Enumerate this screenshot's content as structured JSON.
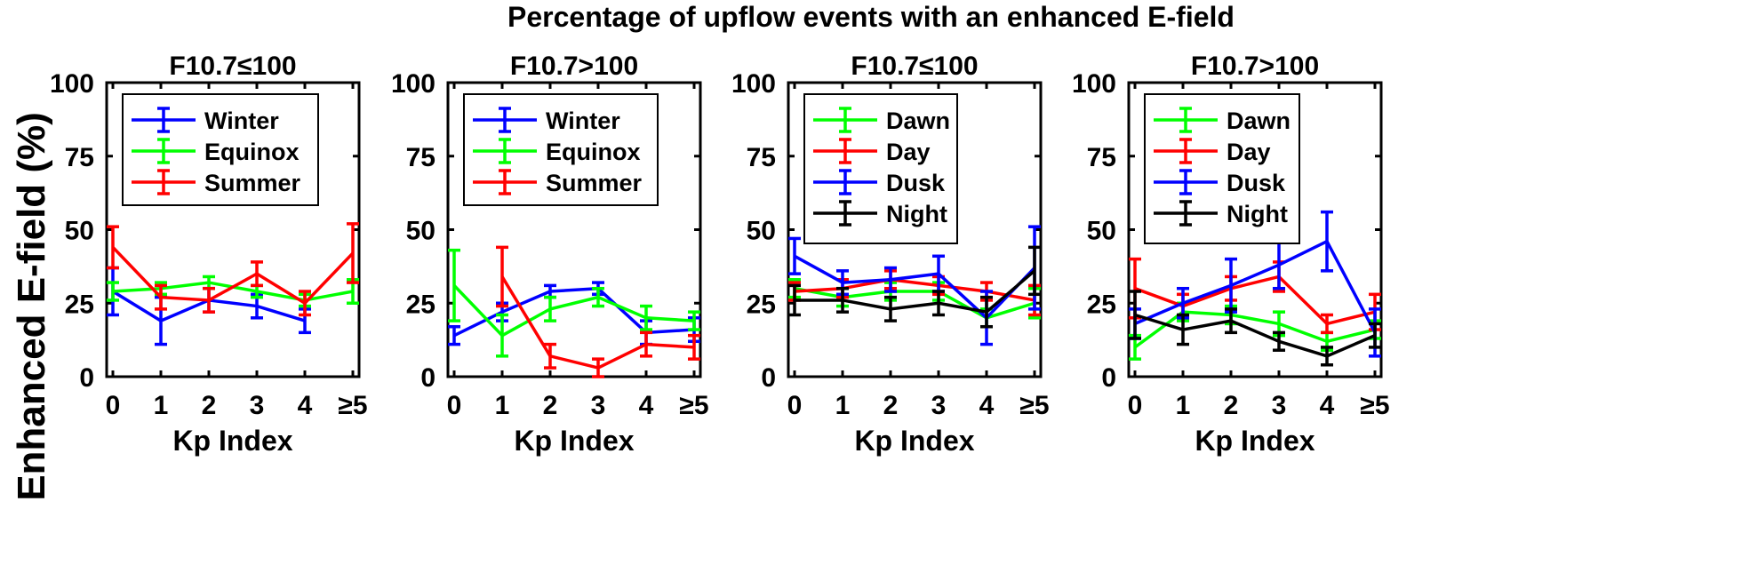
{
  "figure": {
    "title": "Percentage of upflow events with an enhanced E-field",
    "ylabel": "Enhanced E-field (%)"
  },
  "chart_data": [
    {
      "type": "line",
      "title": "F10.7≤100",
      "xlabel": "Kp Index",
      "ylabel": "Enhanced E-field (%)",
      "categories": [
        "0",
        "1",
        "2",
        "3",
        "4",
        "≥5"
      ],
      "ylim": [
        0,
        100
      ],
      "yticks": [
        0,
        25,
        50,
        75,
        100
      ],
      "legend_position": "top-left",
      "series": [
        {
          "name": "Winter",
          "color": "#0000ff",
          "values": [
            29,
            19,
            26,
            24,
            19,
            null
          ],
          "errors": [
            8,
            8,
            4,
            4,
            4,
            null
          ]
        },
        {
          "name": "Equinox",
          "color": "#00ff00",
          "values": [
            29,
            30,
            32,
            29,
            26,
            29
          ],
          "errors": [
            3,
            2,
            2,
            2,
            2,
            4
          ]
        },
        {
          "name": "Summer",
          "color": "#ff0000",
          "values": [
            44,
            27,
            26,
            35,
            25,
            42
          ],
          "errors": [
            7,
            4,
            4,
            4,
            4,
            10
          ]
        }
      ]
    },
    {
      "type": "line",
      "title": "F10.7>100",
      "xlabel": "Kp Index",
      "ylabel": "",
      "categories": [
        "0",
        "1",
        "2",
        "3",
        "4",
        "≥5"
      ],
      "ylim": [
        0,
        100
      ],
      "yticks": [
        0,
        25,
        50,
        75,
        100
      ],
      "legend_position": "top-left",
      "series": [
        {
          "name": "Winter",
          "color": "#0000ff",
          "values": [
            14,
            22,
            29,
            30,
            15,
            16
          ],
          "errors": [
            3,
            3,
            2,
            2,
            4,
            4
          ]
        },
        {
          "name": "Equinox",
          "color": "#00ff00",
          "values": [
            31,
            14,
            23,
            27,
            20,
            19
          ],
          "errors": [
            12,
            7,
            4,
            3,
            4,
            3
          ]
        },
        {
          "name": "Summer",
          "color": "#ff0000",
          "values": [
            null,
            34,
            7,
            3,
            11,
            10
          ],
          "errors": [
            null,
            10,
            4,
            3,
            4,
            4
          ]
        }
      ]
    },
    {
      "type": "line",
      "title": "F10.7≤100",
      "xlabel": "Kp Index",
      "ylabel": "",
      "categories": [
        "0",
        "1",
        "2",
        "3",
        "4",
        "≥5"
      ],
      "ylim": [
        0,
        100
      ],
      "yticks": [
        0,
        25,
        50,
        75,
        100
      ],
      "legend_position": "top-left",
      "series": [
        {
          "name": "Dawn",
          "color": "#00ff00",
          "values": [
            30,
            27,
            29,
            29,
            20,
            25
          ],
          "errors": [
            3,
            3,
            3,
            3,
            3,
            5
          ]
        },
        {
          "name": "Day",
          "color": "#ff0000",
          "values": [
            29,
            30,
            33,
            31,
            29,
            26
          ],
          "errors": [
            3,
            3,
            3,
            3,
            3,
            5
          ]
        },
        {
          "name": "Dusk",
          "color": "#0000ff",
          "values": [
            41,
            32,
            33,
            35,
            20,
            37
          ],
          "errors": [
            6,
            4,
            4,
            6,
            9,
            14
          ]
        },
        {
          "name": "Night",
          "color": "#000000",
          "values": [
            26,
            26,
            23,
            25,
            22,
            36
          ],
          "errors": [
            5,
            4,
            4,
            4,
            5,
            8
          ]
        }
      ]
    },
    {
      "type": "line",
      "title": "F10.7>100",
      "xlabel": "Kp Index",
      "ylabel": "",
      "categories": [
        "0",
        "1",
        "2",
        "3",
        "4",
        "≥5"
      ],
      "ylim": [
        0,
        100
      ],
      "yticks": [
        0,
        25,
        50,
        75,
        100
      ],
      "legend_position": "top-left",
      "series": [
        {
          "name": "Dawn",
          "color": "#00ff00",
          "values": [
            10,
            22,
            21,
            18,
            12,
            16
          ],
          "errors": [
            4,
            3,
            3,
            4,
            3,
            3
          ]
        },
        {
          "name": "Day",
          "color": "#ff0000",
          "values": [
            30,
            24,
            30,
            34,
            18,
            22
          ],
          "errors": [
            10,
            4,
            4,
            5,
            3,
            6
          ]
        },
        {
          "name": "Dusk",
          "color": "#0000ff",
          "values": [
            18,
            25,
            31,
            38,
            46,
            15
          ],
          "errors": [
            5,
            5,
            9,
            8,
            10,
            8
          ]
        },
        {
          "name": "Night",
          "color": "#000000",
          "values": [
            21,
            16,
            19,
            12,
            7,
            14
          ],
          "errors": [
            8,
            5,
            4,
            3,
            3,
            4
          ]
        }
      ]
    }
  ]
}
